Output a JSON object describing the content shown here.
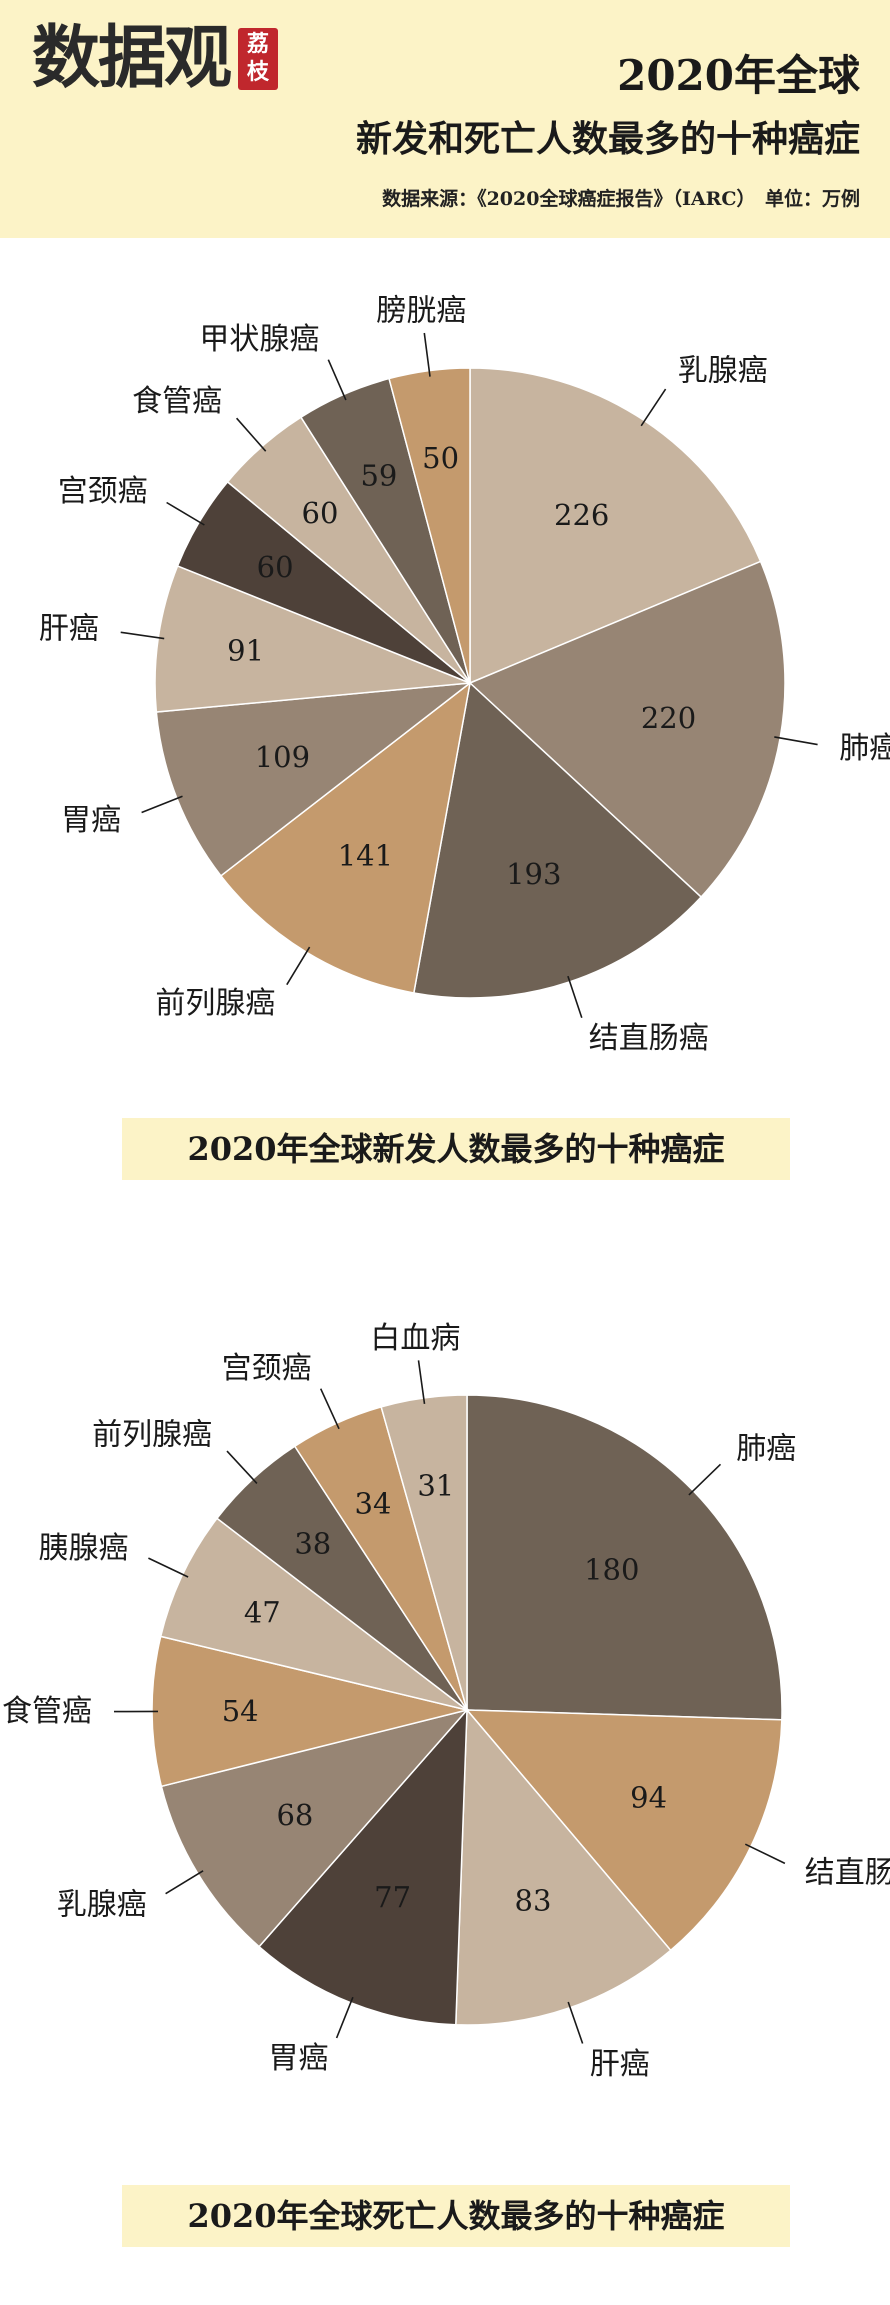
{
  "brand": {
    "name": "数据观",
    "seal": "荔枝"
  },
  "header": {
    "title": "2020年全球",
    "subtitle": "新发和死亡人数最多的十种癌症",
    "source": "数据来源：《2020全球癌症报告》（IARC）　单位：万例"
  },
  "chart_data": [
    {
      "type": "pie",
      "title": "2020年全球新发人数最多的十种癌症",
      "categories": [
        "乳腺癌",
        "肺癌",
        "结直肠癌",
        "前列腺癌",
        "胃癌",
        "肝癌",
        "宫颈癌",
        "食管癌",
        "甲状腺癌",
        "膀胱癌"
      ],
      "values": [
        226,
        220,
        193,
        141,
        109,
        91,
        60,
        60,
        59,
        50
      ],
      "colors": [
        "#c7b49f",
        "#978574",
        "#6f6255",
        "#c49a6d",
        "#978574",
        "#c7b49f",
        "#4e4139",
        "#c7b49f",
        "#6f6255",
        "#c49a6d"
      ]
    },
    {
      "type": "pie",
      "title": "2020年全球死亡人数最多的十种癌症",
      "categories": [
        "肺癌",
        "结直肠癌",
        "肝癌",
        "胃癌",
        "乳腺癌",
        "食管癌",
        "胰腺癌",
        "前列腺癌",
        "宫颈癌",
        "白血病"
      ],
      "values": [
        180,
        94,
        83,
        77,
        68,
        54,
        47,
        38,
        34,
        31
      ],
      "colors": [
        "#6f6255",
        "#c49a6d",
        "#c7b49f",
        "#4e4139",
        "#978574",
        "#c49a6d",
        "#c7b49f",
        "#6f6255",
        "#c49a6d",
        "#c7b49f"
      ]
    }
  ]
}
